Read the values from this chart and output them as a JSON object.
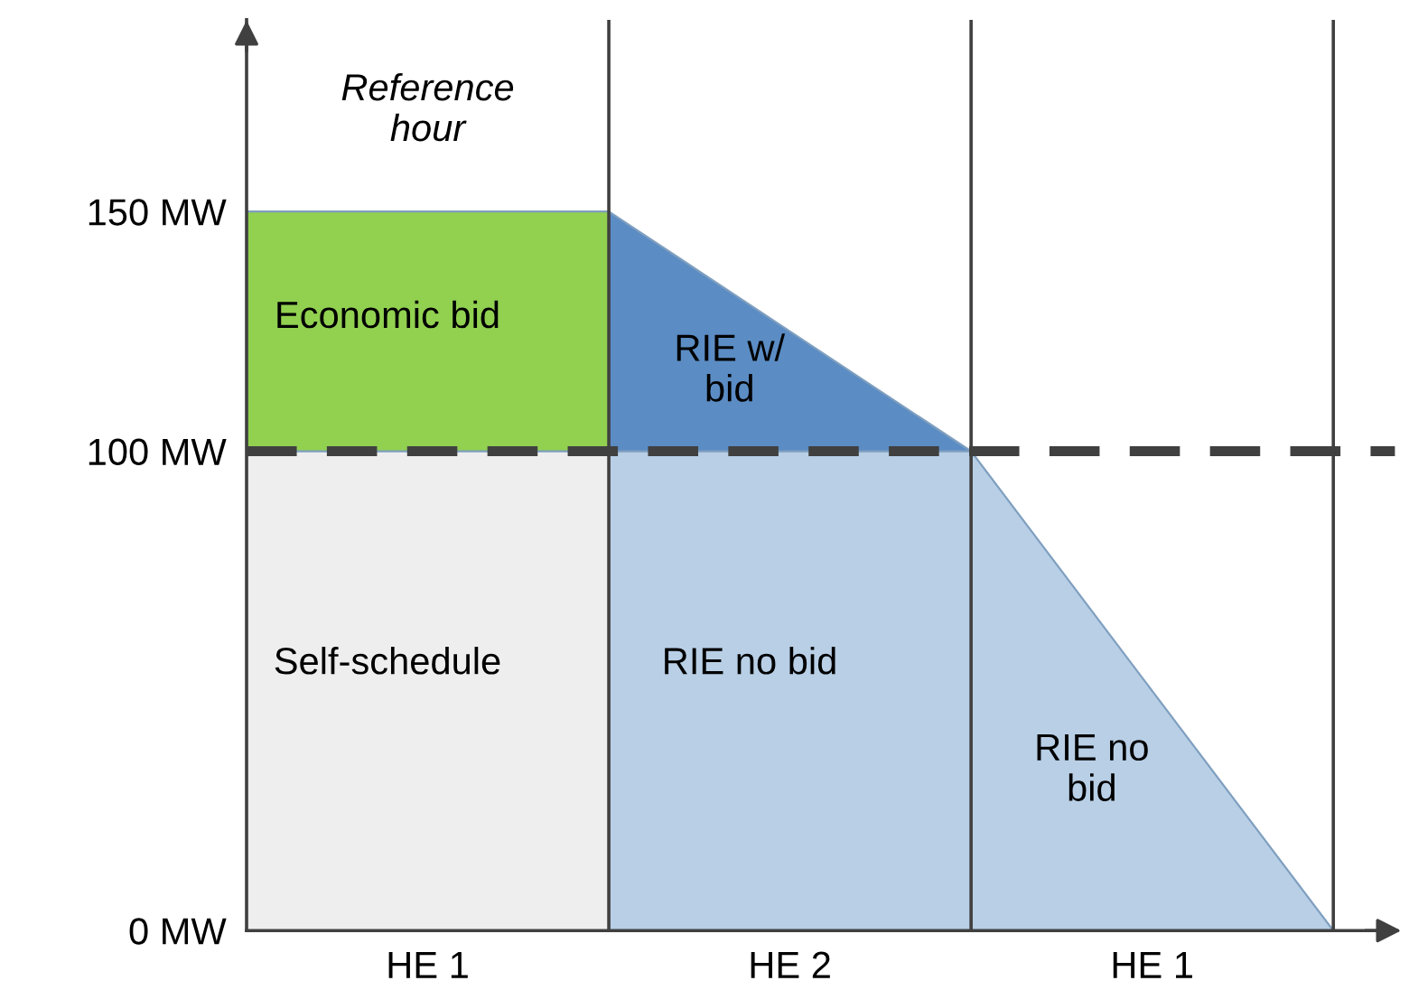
{
  "chart_data": {
    "type": "area",
    "legend": false,
    "grid": "x",
    "ylim": [
      0,
      190
    ],
    "yticks": [
      {
        "value": 0,
        "label": "0 MW"
      },
      {
        "value": 100,
        "label": "100 MW"
      },
      {
        "value": 150,
        "label": "150 MW"
      }
    ],
    "categories": [
      null,
      "HE 1",
      null,
      "HE 2",
      null,
      "HE 1",
      null
    ],
    "series": [
      {
        "name": "Economic bid",
        "color": "#92d050",
        "values": [
          150,
          150,
          150,
          null,
          null,
          null,
          null
        ]
      },
      {
        "name": "Self-schedule",
        "color": "#eeeeee",
        "values": [
          100,
          100,
          100,
          null,
          null,
          null,
          null
        ]
      },
      {
        "name": "RIE w/\nbid",
        "color": "#5b8cc4",
        "values": [
          null,
          null,
          150,
          125,
          100,
          null,
          null
        ]
      },
      {
        "name": "RIE no bid",
        "color": "#b8cfe6",
        "values": [
          null,
          null,
          100,
          100,
          100,
          null,
          null
        ]
      },
      {
        "name": "RIE no\nbid",
        "color": "#b8cfe6",
        "values": [
          null,
          null,
          null,
          null,
          100,
          50,
          0
        ]
      }
    ],
    "ref_lines": [
      {
        "axis": "y",
        "value": 100,
        "color": "#404040",
        "line_style": "dashed"
      }
    ],
    "annotations": [
      "Reference\nhour"
    ]
  }
}
